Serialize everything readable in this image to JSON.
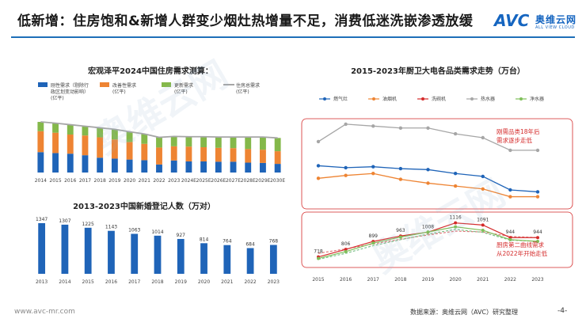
{
  "title": "低新增：住房饱和&新增人群变少烟灶热增量不足，消费低迷洗嵌渗透放缓",
  "logo": {
    "brand": "AVC",
    "cn": "奥维云网",
    "en": "ALL VIEW CLOUD"
  },
  "watermark": "奥维云网",
  "footer": {
    "url": "www.avc-mr.com",
    "source": "数据来源：奥维云网（AVC）研究整理",
    "page": "-4-"
  },
  "colors": {
    "blue": "#1f64b8",
    "orange": "#ee8433",
    "green": "#84b84a",
    "gray": "#a6a6a6",
    "red": "#d42a2a",
    "lightblue": "#8fb4e3",
    "lightgreen": "#7fbf5a",
    "dashed_red": "#e0787a",
    "dashed_green": "#7cc08a",
    "rule": "#1e6fb8"
  },
  "chart_data": [
    {
      "type": "bar",
      "stacked": true,
      "title": "宏观泽平2024中国住房需求测算：",
      "categories": [
        "2014",
        "2015",
        "2016",
        "2017",
        "2018",
        "2019",
        "2020",
        "2021",
        "2022",
        "2023",
        "2024E",
        "2025E",
        "2026E",
        "2027E",
        "2028E",
        "2029E",
        "2030E"
      ],
      "ylabel": "",
      "xlabel": "",
      "ylim": [
        0,
        20
      ],
      "legend_position": "top",
      "series": [
        {
          "name": "刚性需求（剔除行政区划变动影响）(亿平)",
          "color_key": "blue",
          "values": [
            6.6,
            6.3,
            6.1,
            5.6,
            4.8,
            4.5,
            4.2,
            4.0,
            2.6,
            3.9,
            3.6,
            3.6,
            3.5,
            3.5,
            3.2,
            3.1,
            2.8
          ]
        },
        {
          "name": "改善性需求(亿平)",
          "color_key": "orange",
          "values": [
            6.8,
            6.6,
            6.2,
            6.4,
            6.6,
            6.2,
            5.7,
            5.3,
            5.5,
            4.6,
            4.8,
            4.6,
            4.5,
            4.4,
            4.4,
            4.3,
            4.1
          ]
        },
        {
          "name": "更新需求(亿平)",
          "color_key": "green",
          "values": [
            3.0,
            3.1,
            3.2,
            3.0,
            3.1,
            3.3,
            3.3,
            3.2,
            3.3,
            3.2,
            3.2,
            3.4,
            3.5,
            3.6,
            3.9,
            4.1,
            4.3
          ]
        }
      ],
      "line_series": {
        "name": "住房总需求(亿平)",
        "color_key": "gray",
        "values": [
          16.4,
          16.0,
          15.5,
          15.0,
          14.5,
          14.0,
          13.2,
          12.5,
          11.4,
          11.7,
          11.6,
          11.6,
          11.5,
          11.5,
          11.5,
          11.5,
          11.2
        ]
      }
    },
    {
      "type": "bar",
      "title": "2013-2023中国新婚登记人数（万对）",
      "categories": [
        "2013",
        "2014",
        "2015",
        "2016",
        "2017",
        "2018",
        "2019",
        "2020",
        "2021",
        "2022",
        "2023"
      ],
      "values": [
        1347,
        1307,
        1225,
        1143,
        1063,
        1014,
        927,
        814,
        764,
        684,
        768
      ],
      "data_labels": [
        "1347",
        "1307",
        "1225",
        "1143",
        "1063",
        "1014",
        "927",
        "814",
        "764",
        "684",
        "768"
      ],
      "ylim": [
        0,
        1347
      ],
      "color_key": "blue"
    },
    {
      "type": "line",
      "title": "2015-2023年厨卫大电各品类需求走势（万台）",
      "x": [
        "2015",
        "2016",
        "2017",
        "2018",
        "2019",
        "2020",
        "2021",
        "2022",
        "2023"
      ],
      "legend_position": "top",
      "upper_panel_range": [
        2000,
        6500
      ],
      "upper_series": [
        {
          "name": "热水器",
          "color_key": "gray",
          "values": [
            5400,
            6300,
            6200,
            6100,
            6100,
            5800,
            5600,
            4950,
            4950
          ]
        },
        {
          "name": "燃气灶",
          "color_key": "blue",
          "values": [
            4150,
            4050,
            4100,
            4000,
            3950,
            3750,
            3600,
            2900,
            2800
          ]
        },
        {
          "name": "油烟机",
          "color_key": "orange",
          "values": [
            3500,
            3650,
            3750,
            3450,
            3250,
            3100,
            2950,
            2550,
            2550
          ]
        }
      ],
      "lower_panel_range": [
        650,
        1150
      ],
      "lower_series": [
        {
          "name": "洗碗机",
          "color_key": "red",
          "values": [
            718,
            806,
            899,
            963,
            1008,
            1116,
            1091,
            944,
            944
          ],
          "labels": [
            "718",
            "806",
            "899",
            "963",
            "1008",
            "1116",
            "1091",
            "944",
            "944"
          ]
        },
        {
          "name": "净水器",
          "color_key": "lightgreen",
          "values": [
            700,
            780,
            880,
            950,
            1010,
            1070,
            1030,
            920,
            900
          ]
        }
      ],
      "lower_dashed_series": [
        {
          "name": "",
          "color_key": "dashed_red",
          "values": [
            760,
            812,
            870,
            925,
            975,
            1020,
            1010,
            958,
            944
          ]
        },
        {
          "name": "",
          "color_key": "dashed_green",
          "values": [
            690,
            760,
            850,
            920,
            985,
            1040,
            1005,
            915,
            900
          ]
        }
      ],
      "annotations": [
        {
          "lines": [
            "刚需品类18年后",
            "需求逐步走低"
          ],
          "panel": "upper"
        },
        {
          "lines": [
            "厨房第二曲线需求",
            "从2022年开始走低"
          ],
          "panel": "lower"
        }
      ]
    }
  ]
}
